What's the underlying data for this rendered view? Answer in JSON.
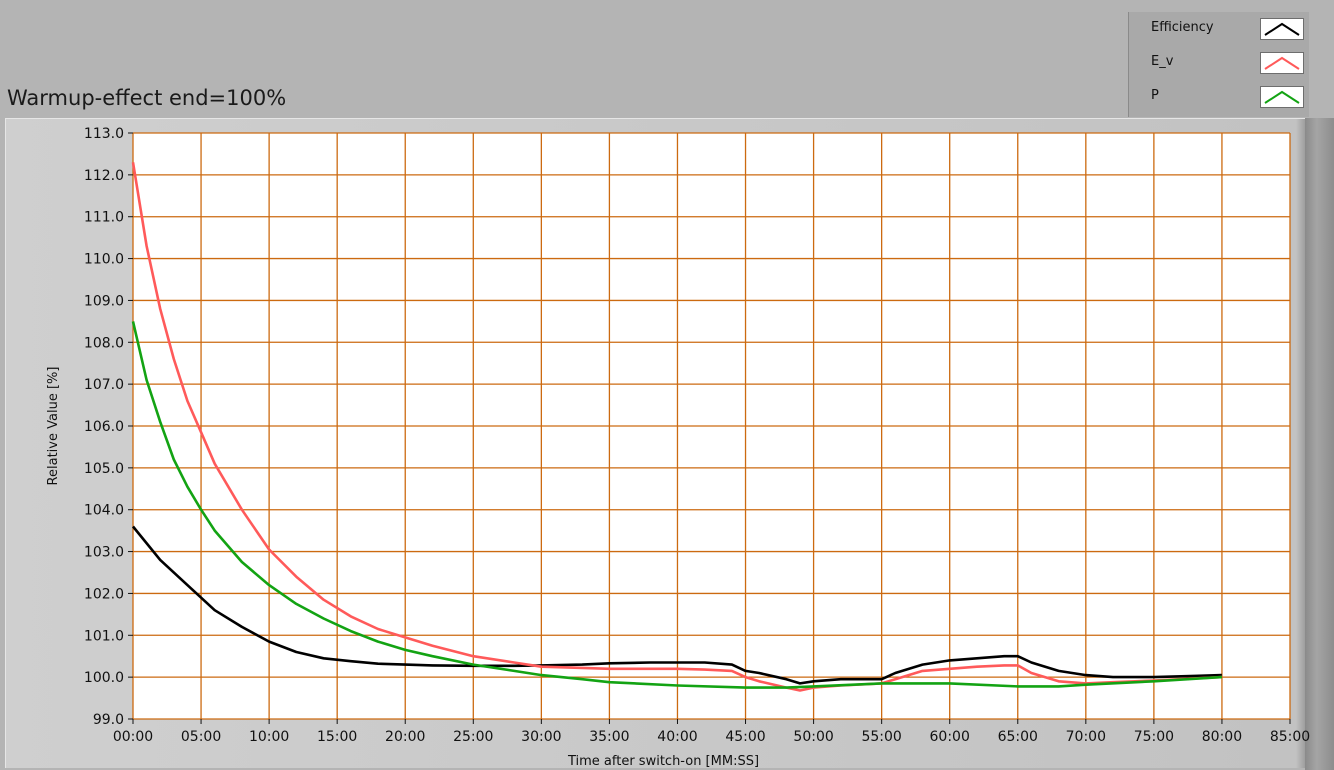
{
  "window": {
    "graph_title": "Warmup-effect end=100%"
  },
  "legend": {
    "items": [
      {
        "label": "Efficiency",
        "color": "#000000"
      },
      {
        "label": "E_v",
        "color": "#ff5a5a"
      },
      {
        "label": "P",
        "color": "#13a313"
      }
    ]
  },
  "colors": {
    "plot_background": "#ffffff",
    "grid": "#cc6a10",
    "panel": "#b4b4b4"
  },
  "chart_data": {
    "type": "line",
    "title": "Warmup-effect end=100%",
    "xlabel": "Time after switch-on [MM:SS]",
    "ylabel": "Relative Value [%]",
    "xlim": [
      0,
      85
    ],
    "ylim": [
      99,
      113
    ],
    "grid": true,
    "legend_position": "top-right",
    "x_ticks": [
      {
        "value": 0,
        "label": "00:00"
      },
      {
        "value": 5,
        "label": "05:00"
      },
      {
        "value": 10,
        "label": "10:00"
      },
      {
        "value": 15,
        "label": "15:00"
      },
      {
        "value": 20,
        "label": "20:00"
      },
      {
        "value": 25,
        "label": "25:00"
      },
      {
        "value": 30,
        "label": "30:00"
      },
      {
        "value": 35,
        "label": "35:00"
      },
      {
        "value": 40,
        "label": "40:00"
      },
      {
        "value": 45,
        "label": "45:00"
      },
      {
        "value": 50,
        "label": "50:00"
      },
      {
        "value": 55,
        "label": "55:00"
      },
      {
        "value": 60,
        "label": "60:00"
      },
      {
        "value": 65,
        "label": "65:00"
      },
      {
        "value": 70,
        "label": "70:00"
      },
      {
        "value": 75,
        "label": "75:00"
      },
      {
        "value": 80,
        "label": "80:00"
      },
      {
        "value": 85,
        "label": "85:00"
      }
    ],
    "y_ticks": [
      {
        "value": 99,
        "label": "99.0"
      },
      {
        "value": 100,
        "label": "100.0"
      },
      {
        "value": 101,
        "label": "101.0"
      },
      {
        "value": 102,
        "label": "102.0"
      },
      {
        "value": 103,
        "label": "103.0"
      },
      {
        "value": 104,
        "label": "104.0"
      },
      {
        "value": 105,
        "label": "105.0"
      },
      {
        "value": 106,
        "label": "106.0"
      },
      {
        "value": 107,
        "label": "107.0"
      },
      {
        "value": 108,
        "label": "108.0"
      },
      {
        "value": 109,
        "label": "109.0"
      },
      {
        "value": 110,
        "label": "110.0"
      },
      {
        "value": 111,
        "label": "111.0"
      },
      {
        "value": 112,
        "label": "112.0"
      },
      {
        "value": 113,
        "label": "113.0"
      }
    ],
    "series": [
      {
        "name": "Efficiency",
        "color": "#000000",
        "x": [
          0,
          2,
          4,
          6,
          8,
          10,
          12,
          14,
          16,
          18,
          20,
          22,
          25,
          28,
          30,
          33,
          35,
          38,
          40,
          42,
          44,
          45,
          46,
          48,
          49,
          50,
          52,
          55,
          56,
          58,
          60,
          62,
          64,
          65,
          66,
          68,
          70,
          72,
          75,
          78,
          80
        ],
        "y": [
          103.6,
          102.8,
          102.2,
          101.6,
          101.2,
          100.85,
          100.6,
          100.45,
          100.38,
          100.32,
          100.3,
          100.28,
          100.27,
          100.27,
          100.28,
          100.3,
          100.33,
          100.35,
          100.35,
          100.35,
          100.3,
          100.15,
          100.1,
          99.95,
          99.85,
          99.9,
          99.95,
          99.95,
          100.1,
          100.3,
          100.4,
          100.45,
          100.5,
          100.5,
          100.35,
          100.15,
          100.05,
          100.0,
          100.0,
          100.03,
          100.05
        ]
      },
      {
        "name": "E_v",
        "color": "#ff5a5a",
        "x": [
          0,
          1,
          2,
          3,
          4,
          5,
          6,
          8,
          10,
          12,
          14,
          16,
          18,
          20,
          22,
          25,
          28,
          30,
          33,
          35,
          38,
          40,
          42,
          44,
          45,
          46,
          48,
          49,
          50,
          52,
          55,
          56,
          58,
          60,
          62,
          64,
          65,
          66,
          68,
          70,
          72,
          75,
          78,
          80
        ],
        "y": [
          112.3,
          110.3,
          108.8,
          107.6,
          106.6,
          105.85,
          105.1,
          104.0,
          103.05,
          102.4,
          101.85,
          101.45,
          101.15,
          100.95,
          100.75,
          100.5,
          100.35,
          100.25,
          100.22,
          100.2,
          100.2,
          100.2,
          100.18,
          100.15,
          100.0,
          99.9,
          99.75,
          99.68,
          99.75,
          99.8,
          99.85,
          99.95,
          100.15,
          100.2,
          100.25,
          100.28,
          100.28,
          100.1,
          99.9,
          99.85,
          99.88,
          99.92,
          99.97,
          100.0
        ]
      },
      {
        "name": "P",
        "color": "#13a313",
        "x": [
          0,
          1,
          2,
          3,
          4,
          5,
          6,
          8,
          10,
          12,
          14,
          16,
          18,
          20,
          22,
          25,
          28,
          30,
          33,
          35,
          40,
          45,
          48,
          50,
          55,
          60,
          65,
          68,
          70,
          75,
          80
        ],
        "y": [
          108.5,
          107.1,
          106.1,
          105.2,
          104.55,
          104.0,
          103.5,
          102.75,
          102.2,
          101.75,
          101.4,
          101.1,
          100.85,
          100.65,
          100.5,
          100.3,
          100.15,
          100.05,
          99.95,
          99.88,
          99.8,
          99.75,
          99.75,
          99.78,
          99.85,
          99.85,
          99.78,
          99.78,
          99.82,
          99.9,
          100.0
        ]
      }
    ]
  }
}
